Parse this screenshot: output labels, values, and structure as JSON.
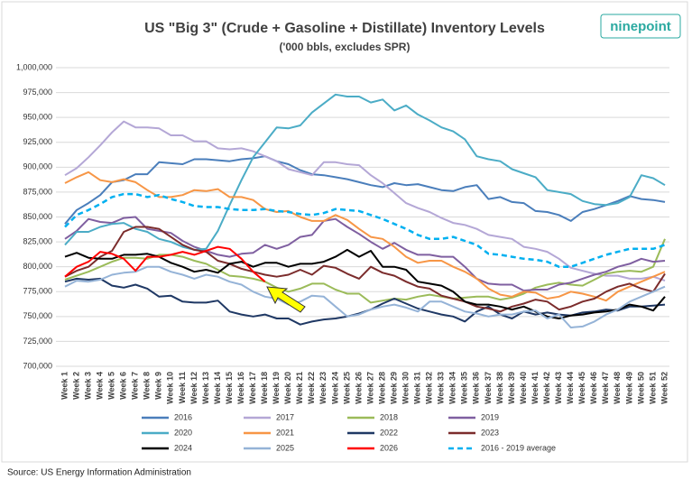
{
  "chart_data": {
    "type": "line",
    "title": "US \"Big 3\"  (Crude + Gasoline + Distillate) Inventory Levels",
    "subtitle": "('000 bbls, excludes SPR)",
    "logo": "ninepoint",
    "source": "Source: US Energy Information Administration",
    "grid": true,
    "legend": "bottom",
    "ylim": [
      700000,
      1000000
    ],
    "yticks": [
      {
        "value": 700000,
        "label": "700,000"
      },
      {
        "value": 725000,
        "label": "725,000"
      },
      {
        "value": 750000,
        "label": "750,000"
      },
      {
        "value": 775000,
        "label": "775,000"
      },
      {
        "value": 800000,
        "label": "800,000"
      },
      {
        "value": 825000,
        "label": "825,000"
      },
      {
        "value": 850000,
        "label": "850,000"
      },
      {
        "value": 875000,
        "label": "875,000"
      },
      {
        "value": 900000,
        "label": "900,000"
      },
      {
        "value": 925000,
        "label": "925,000"
      },
      {
        "value": 950000,
        "label": "950,000"
      },
      {
        "value": 975000,
        "label": "975,000"
      },
      {
        "value": 1000000,
        "label": "1,000,000"
      }
    ],
    "categories": [
      "Week 1",
      "Week 2",
      "Week 3",
      "Week 4",
      "Week 5",
      "Week 6",
      "Week 7",
      "Week 8",
      "Week 9",
      "Week 10",
      "Week 11",
      "Week 12",
      "Week 13",
      "Week 14",
      "Week 15",
      "Week 16",
      "Week 17",
      "Week 18",
      "Week 19",
      "Week 20",
      "Week 21",
      "Week 22",
      "Week 23",
      "Week 24",
      "Week 25",
      "Week 26",
      "Week 27",
      "Week 28",
      "Week 29",
      "Week 30",
      "Week 31",
      "Week 32",
      "Week 33",
      "Week 34",
      "Week 35",
      "Week 36",
      "Week 37",
      "Week 38",
      "Week 39",
      "Week 40",
      "Week 41",
      "Week 42",
      "Week 43",
      "Week 44",
      "Week 45",
      "Week 46",
      "Week 47",
      "Week 48",
      "Week 49",
      "Week 50",
      "Week 51",
      "Week 52"
    ],
    "series": [
      {
        "name": "2016",
        "color": "#4a7ebb",
        "values": [
          843000,
          857000,
          864000,
          872000,
          885000,
          887000,
          893000,
          893000,
          905000,
          904000,
          903000,
          908000,
          908000,
          907000,
          906000,
          908000,
          909000,
          911000,
          906000,
          903000,
          897000,
          893000,
          892000,
          890000,
          888000,
          885000,
          882000,
          880000,
          884000,
          882000,
          883000,
          880000,
          877000,
          876000,
          880000,
          882000,
          868000,
          870000,
          865000,
          864000,
          856000,
          855000,
          852000,
          846000,
          855000,
          858000,
          862000,
          866000,
          871000,
          868000,
          867000,
          865000
        ]
      },
      {
        "name": "2017",
        "color": "#b4a7d6",
        "values": [
          892000,
          899000,
          910000,
          922000,
          935000,
          946000,
          940000,
          940000,
          939000,
          932000,
          932000,
          926000,
          926000,
          919000,
          918000,
          919000,
          916000,
          911000,
          906000,
          898000,
          895000,
          892000,
          905000,
          905000,
          903000,
          902000,
          892000,
          884000,
          874000,
          864000,
          859000,
          855000,
          849000,
          844000,
          842000,
          838000,
          832000,
          830000,
          828000,
          820000,
          818000,
          815000,
          808000,
          799000,
          796000,
          793000,
          791000,
          791000,
          788000,
          788000,
          790000,
          786000
        ]
      },
      {
        "name": "2018",
        "color": "#9bbb59",
        "values": [
          787000,
          791000,
          795000,
          800000,
          805000,
          809000,
          809000,
          808000,
          812000,
          812000,
          810000,
          806000,
          803000,
          797000,
          791000,
          790000,
          788000,
          785000,
          779000,
          775000,
          778000,
          783000,
          783000,
          777000,
          773000,
          773000,
          764000,
          766000,
          768000,
          767000,
          770000,
          772000,
          770000,
          768000,
          769000,
          770000,
          770000,
          767000,
          769000,
          773000,
          779000,
          782000,
          784000,
          782000,
          781000,
          787000,
          793000,
          795000,
          796000,
          795000,
          800000,
          828000
        ]
      },
      {
        "name": "2019",
        "color": "#7f5fa0",
        "values": [
          828000,
          836000,
          848000,
          845000,
          844000,
          849000,
          850000,
          838000,
          836000,
          834000,
          826000,
          820000,
          816000,
          812000,
          810000,
          813000,
          814000,
          822000,
          818000,
          822000,
          830000,
          832000,
          846000,
          848000,
          840000,
          833000,
          825000,
          818000,
          824000,
          817000,
          812000,
          812000,
          810000,
          810000,
          800000,
          788000,
          783000,
          782000,
          782000,
          776000,
          777000,
          777000,
          782000,
          784000,
          788000,
          792000,
          795000,
          800000,
          803000,
          808000,
          805000,
          806000
        ]
      },
      {
        "name": "2020",
        "color": "#4bacc6",
        "values": [
          822000,
          835000,
          835000,
          840000,
          843000,
          844000,
          838000,
          835000,
          828000,
          825000,
          820000,
          817000,
          818000,
          836000,
          862000,
          887000,
          910000,
          925000,
          940000,
          939000,
          942000,
          955000,
          964000,
          973000,
          971000,
          971000,
          965000,
          968000,
          957000,
          962000,
          953000,
          947000,
          940000,
          936000,
          928000,
          911000,
          908000,
          906000,
          898000,
          894000,
          890000,
          877000,
          875000,
          873000,
          866000,
          863000,
          862000,
          864000,
          870000,
          892000,
          889000,
          882000
        ]
      },
      {
        "name": "2021",
        "color": "#f79646",
        "values": [
          884000,
          890000,
          895000,
          887000,
          885000,
          888000,
          885000,
          877000,
          870000,
          870000,
          872000,
          877000,
          876000,
          878000,
          870000,
          870000,
          867000,
          858000,
          855000,
          856000,
          850000,
          846000,
          846000,
          852000,
          847000,
          838000,
          830000,
          828000,
          820000,
          810000,
          804000,
          806000,
          806000,
          800000,
          795000,
          788000,
          778000,
          772000,
          770000,
          775000,
          774000,
          768000,
          770000,
          775000,
          773000,
          770000,
          766000,
          775000,
          780000,
          785000,
          790000,
          795000
        ]
      },
      {
        "name": "2022",
        "color": "#1f3864",
        "values": [
          785000,
          788000,
          787000,
          788000,
          781000,
          779000,
          782000,
          778000,
          770000,
          771000,
          765000,
          764000,
          764000,
          766000,
          755000,
          752000,
          750000,
          752000,
          748000,
          748000,
          742000,
          745000,
          747000,
          748000,
          750000,
          753000,
          757000,
          763000,
          768000,
          763000,
          758000,
          755000,
          752000,
          750000,
          745000,
          755000,
          760000,
          752000,
          748000,
          755000,
          752000,
          754000,
          752000,
          751000,
          754000,
          755000,
          757000,
          756000,
          760000,
          760000,
          761000,
          762000
        ]
      },
      {
        "name": "2023",
        "color": "#7b2c2c",
        "values": [
          790000,
          796000,
          800000,
          810000,
          816000,
          835000,
          840000,
          840000,
          838000,
          830000,
          822000,
          817000,
          815000,
          806000,
          803000,
          798000,
          795000,
          792000,
          790000,
          792000,
          797000,
          792000,
          801000,
          799000,
          793000,
          788000,
          800000,
          794000,
          791000,
          785000,
          780000,
          778000,
          771000,
          768000,
          765000,
          760000,
          758000,
          755000,
          760000,
          763000,
          767000,
          765000,
          757000,
          760000,
          765000,
          768000,
          775000,
          780000,
          783000,
          778000,
          775000,
          793000
        ]
      },
      {
        "name": "2024",
        "color": "#000000",
        "values": [
          810000,
          814000,
          809000,
          808000,
          808000,
          812000,
          812000,
          813000,
          810000,
          804000,
          800000,
          795000,
          797000,
          794000,
          803000,
          805000,
          800000,
          804000,
          804000,
          800000,
          803000,
          803000,
          805000,
          810000,
          817000,
          810000,
          816000,
          800000,
          800000,
          797000,
          785000,
          783000,
          781000,
          775000,
          765000,
          762000,
          762000,
          760000,
          757000,
          760000,
          755000,
          750000,
          748000,
          751000,
          752000,
          754000,
          755000,
          757000,
          762000,
          760000,
          756000,
          770000
        ]
      },
      {
        "name": "2025",
        "color": "#95b3d7",
        "values": [
          780000,
          786000,
          785000,
          787000,
          792000,
          794000,
          795000,
          800000,
          800000,
          795000,
          792000,
          788000,
          792000,
          790000,
          785000,
          782000,
          775000,
          770000,
          768000,
          762000,
          765000,
          771000,
          770000,
          760000,
          750000,
          752000,
          757000,
          760000,
          762000,
          759000,
          755000,
          765000,
          765000,
          760000,
          755000,
          753000,
          750000,
          752000,
          752000,
          755000,
          756000,
          748000,
          752000,
          739000,
          740000,
          745000,
          752000,
          757000,
          765000,
          770000,
          775000,
          780000
        ]
      },
      {
        "name": "2026",
        "color": "#ff0000",
        "values": [
          790000,
          800000,
          805000,
          815000,
          813000,
          808000,
          796000,
          810000,
          810000,
          812000,
          815000,
          812000,
          816000,
          820000,
          818000,
          808000,
          795000,
          785000,
          null,
          null,
          null,
          null,
          null,
          null,
          null,
          null,
          null,
          null,
          null,
          null,
          null,
          null,
          null,
          null,
          null,
          null,
          null,
          null,
          null,
          null,
          null,
          null,
          null,
          null,
          null,
          null,
          null,
          null,
          null,
          null,
          null,
          null
        ]
      },
      {
        "name": "2016 - 2019 average",
        "color": "#00b0f0",
        "dashed": true,
        "values": [
          840000,
          852000,
          857000,
          863000,
          870000,
          873000,
          873000,
          870000,
          872000,
          868000,
          865000,
          861000,
          860000,
          860000,
          858000,
          857000,
          857000,
          858000,
          856000,
          855000,
          853000,
          852000,
          854000,
          858000,
          857000,
          856000,
          852000,
          848000,
          843000,
          838000,
          832000,
          828000,
          828000,
          830000,
          826000,
          822000,
          813000,
          812000,
          810000,
          808000,
          807000,
          805000,
          800000,
          800000,
          804000,
          808000,
          812000,
          815000,
          818000,
          818000,
          818000,
          822000
        ]
      }
    ]
  }
}
